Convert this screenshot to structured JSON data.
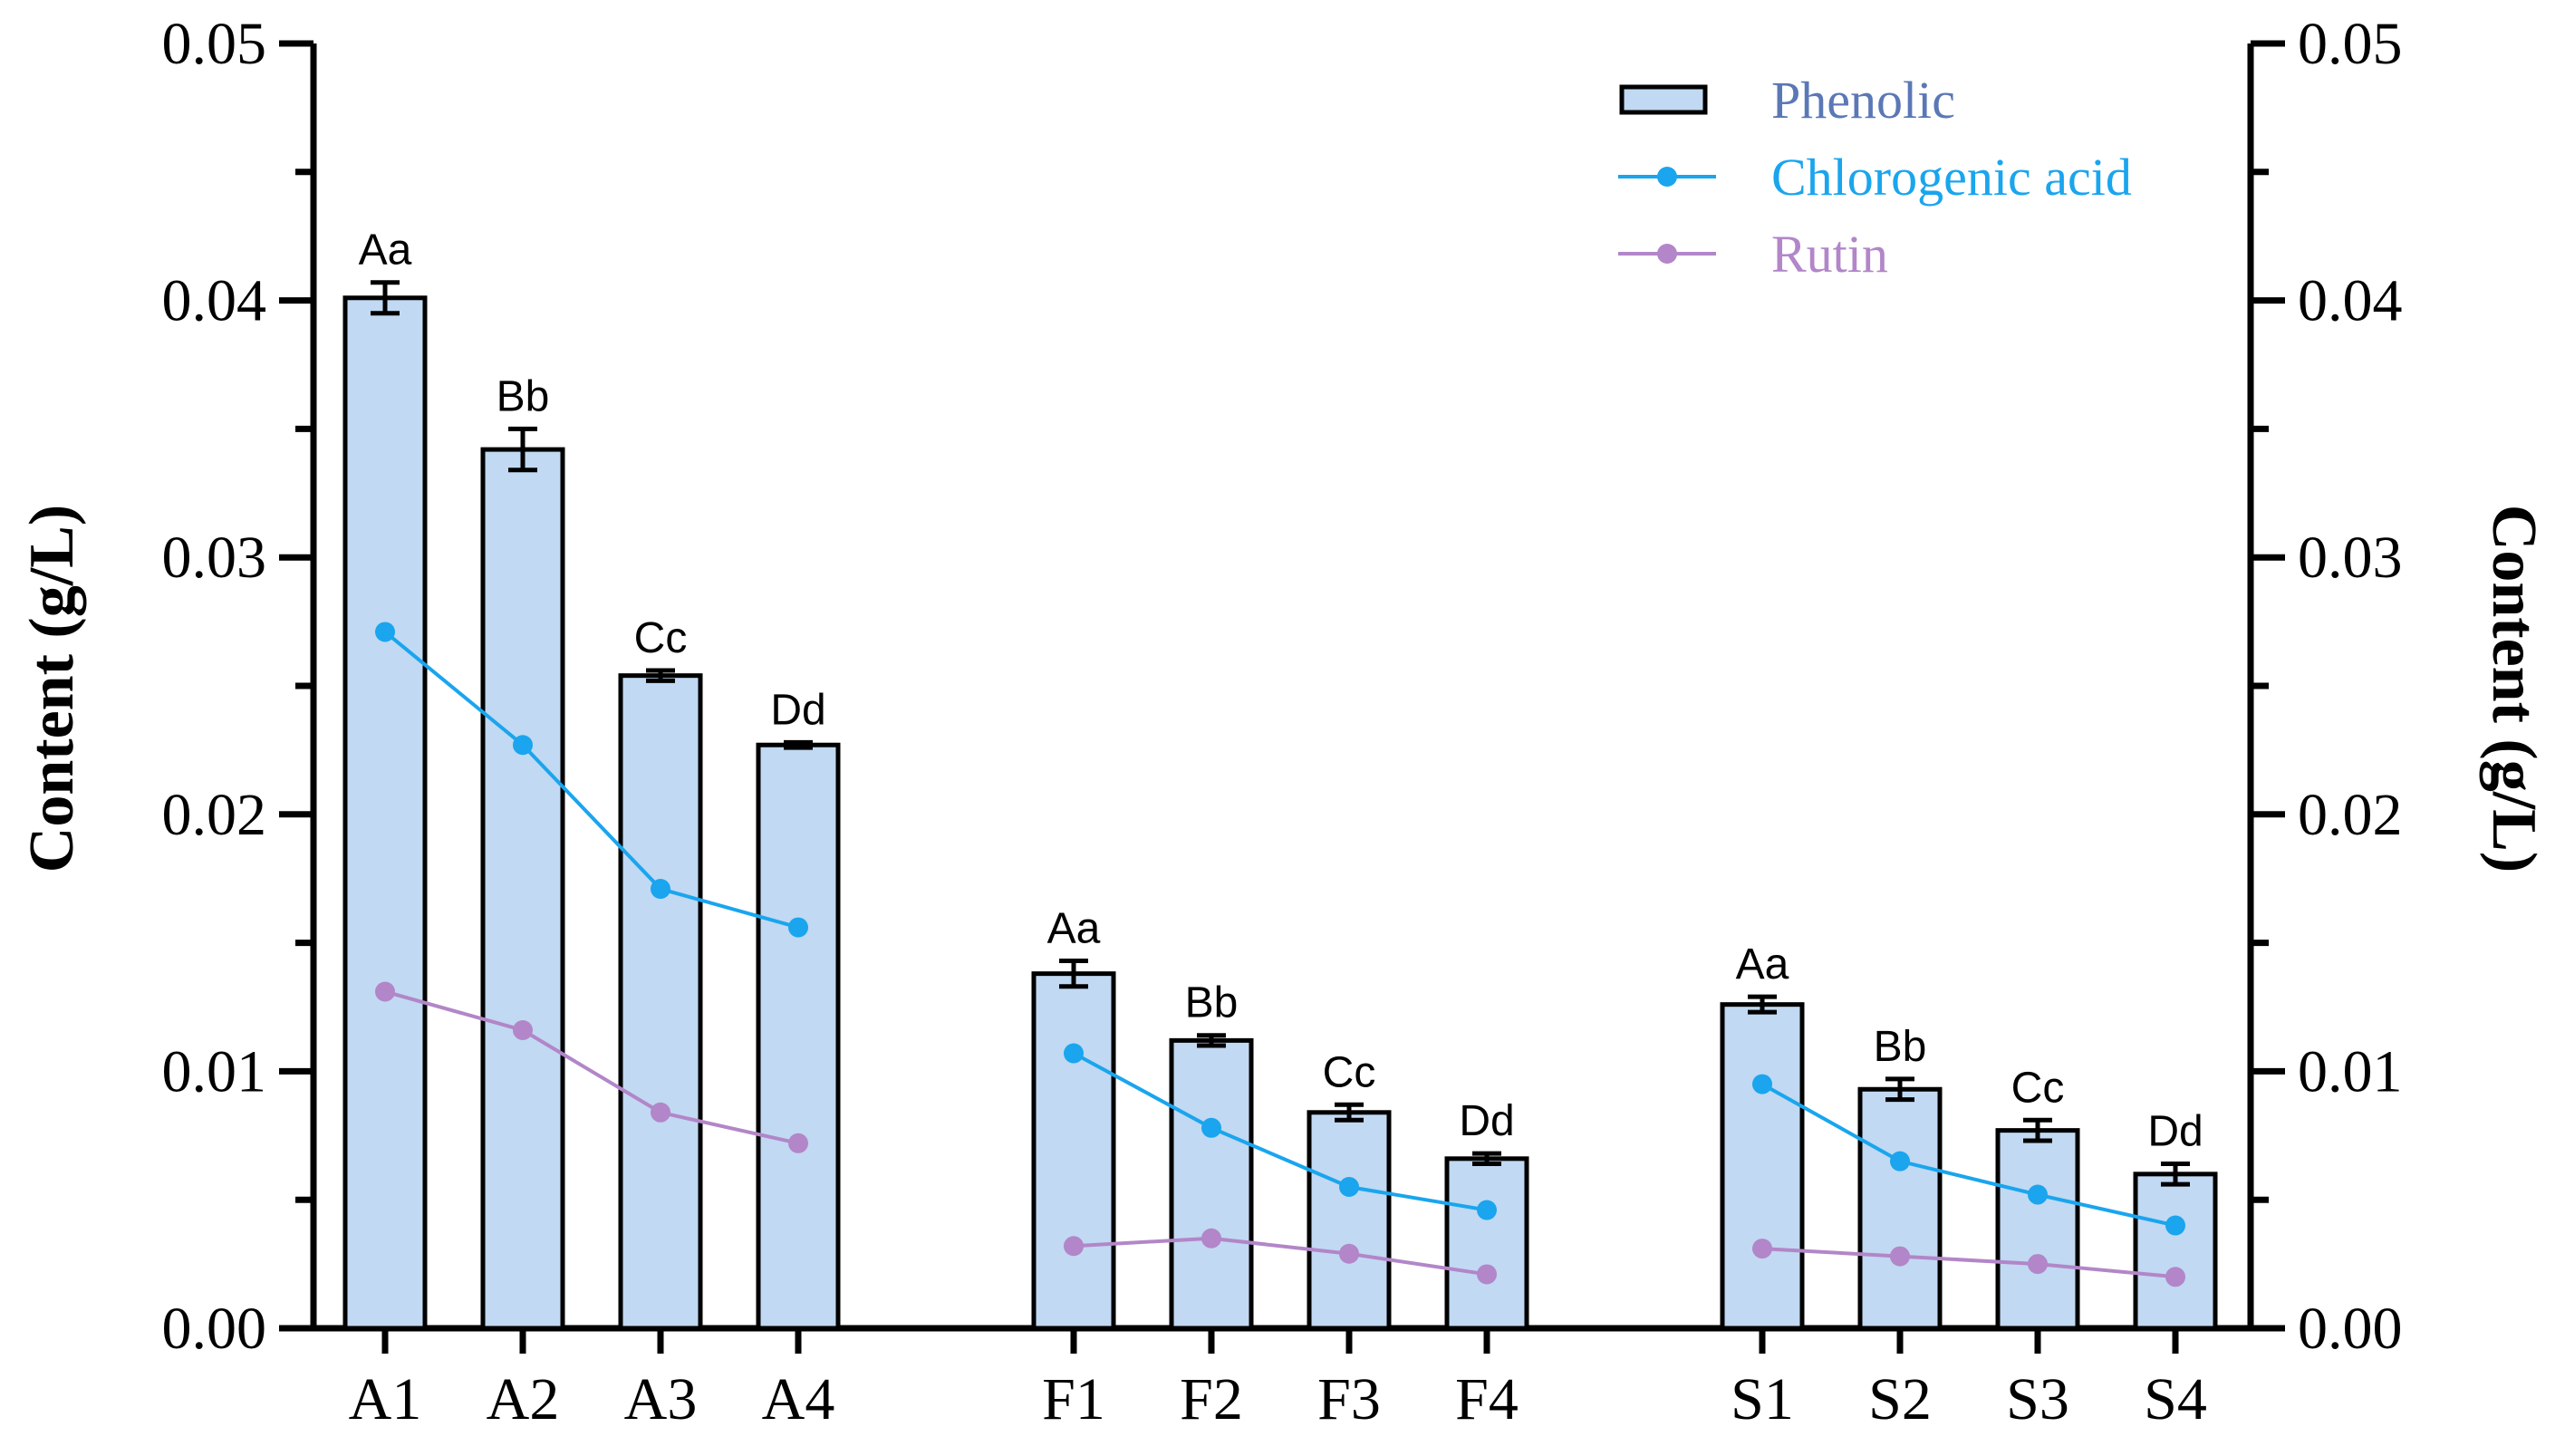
{
  "chart_data": {
    "type": "bar",
    "title": "",
    "xlabel": "",
    "ylabel": "Content (g/L)",
    "ylabel_right": "Content (g/L)",
    "ylim": [
      0,
      0.05
    ],
    "yticks": [
      "0.00",
      "0.01",
      "0.02",
      "0.03",
      "0.04",
      "0.05"
    ],
    "grid": false,
    "legend_position": "top-right",
    "groups": [
      {
        "name": "A",
        "categories": [
          "A1",
          "A2",
          "A3",
          "A4"
        ],
        "phenolic": [
          0.0401,
          0.0342,
          0.0254,
          0.0227
        ],
        "phenolic_error": [
          0.0006,
          0.0008,
          0.0002,
          0.0001
        ],
        "chlorogenic_acid": [
          0.0271,
          0.0227,
          0.0171,
          0.0156
        ],
        "rutin": [
          0.0131,
          0.0116,
          0.0084,
          0.0072
        ],
        "significance": [
          "Aa",
          "Bb",
          "Cc",
          "Dd"
        ]
      },
      {
        "name": "F",
        "categories": [
          "F1",
          "F2",
          "F3",
          "F4"
        ],
        "phenolic": [
          0.0138,
          0.0112,
          0.0084,
          0.0066
        ],
        "phenolic_error": [
          0.0005,
          0.0002,
          0.0003,
          0.0002
        ],
        "chlorogenic_acid": [
          0.0107,
          0.0078,
          0.0055,
          0.0046
        ],
        "rutin": [
          0.0032,
          0.0035,
          0.0029,
          0.0021
        ],
        "significance": [
          "Aa",
          "Bb",
          "Cc",
          "Dd"
        ]
      },
      {
        "name": "S",
        "categories": [
          "S1",
          "S2",
          "S3",
          "S4"
        ],
        "phenolic": [
          0.0126,
          0.0093,
          0.0077,
          0.006
        ],
        "phenolic_error": [
          0.0003,
          0.0004,
          0.0004,
          0.0004
        ],
        "chlorogenic_acid": [
          0.0095,
          0.0065,
          0.0052,
          0.004
        ],
        "rutin": [
          0.0031,
          0.0028,
          0.0025,
          0.002
        ],
        "significance": [
          "Aa",
          "Bb",
          "Cc",
          "Dd"
        ]
      }
    ],
    "legend": [
      {
        "label": "Phenolic",
        "kind": "bar",
        "color": "#5b78b6"
      },
      {
        "label": "Chlorogenic acid",
        "kind": "line",
        "color": "#1aa5ee"
      },
      {
        "label": "Rutin",
        "kind": "line",
        "color": "#b286c8"
      }
    ],
    "colors": {
      "bar_fill": "#c1d9f2",
      "bar_stroke": "#000000",
      "chlorogenic": "#1aa5ee",
      "rutin": "#b286c8",
      "phenolic_legend_text": "#5b78b6"
    }
  }
}
